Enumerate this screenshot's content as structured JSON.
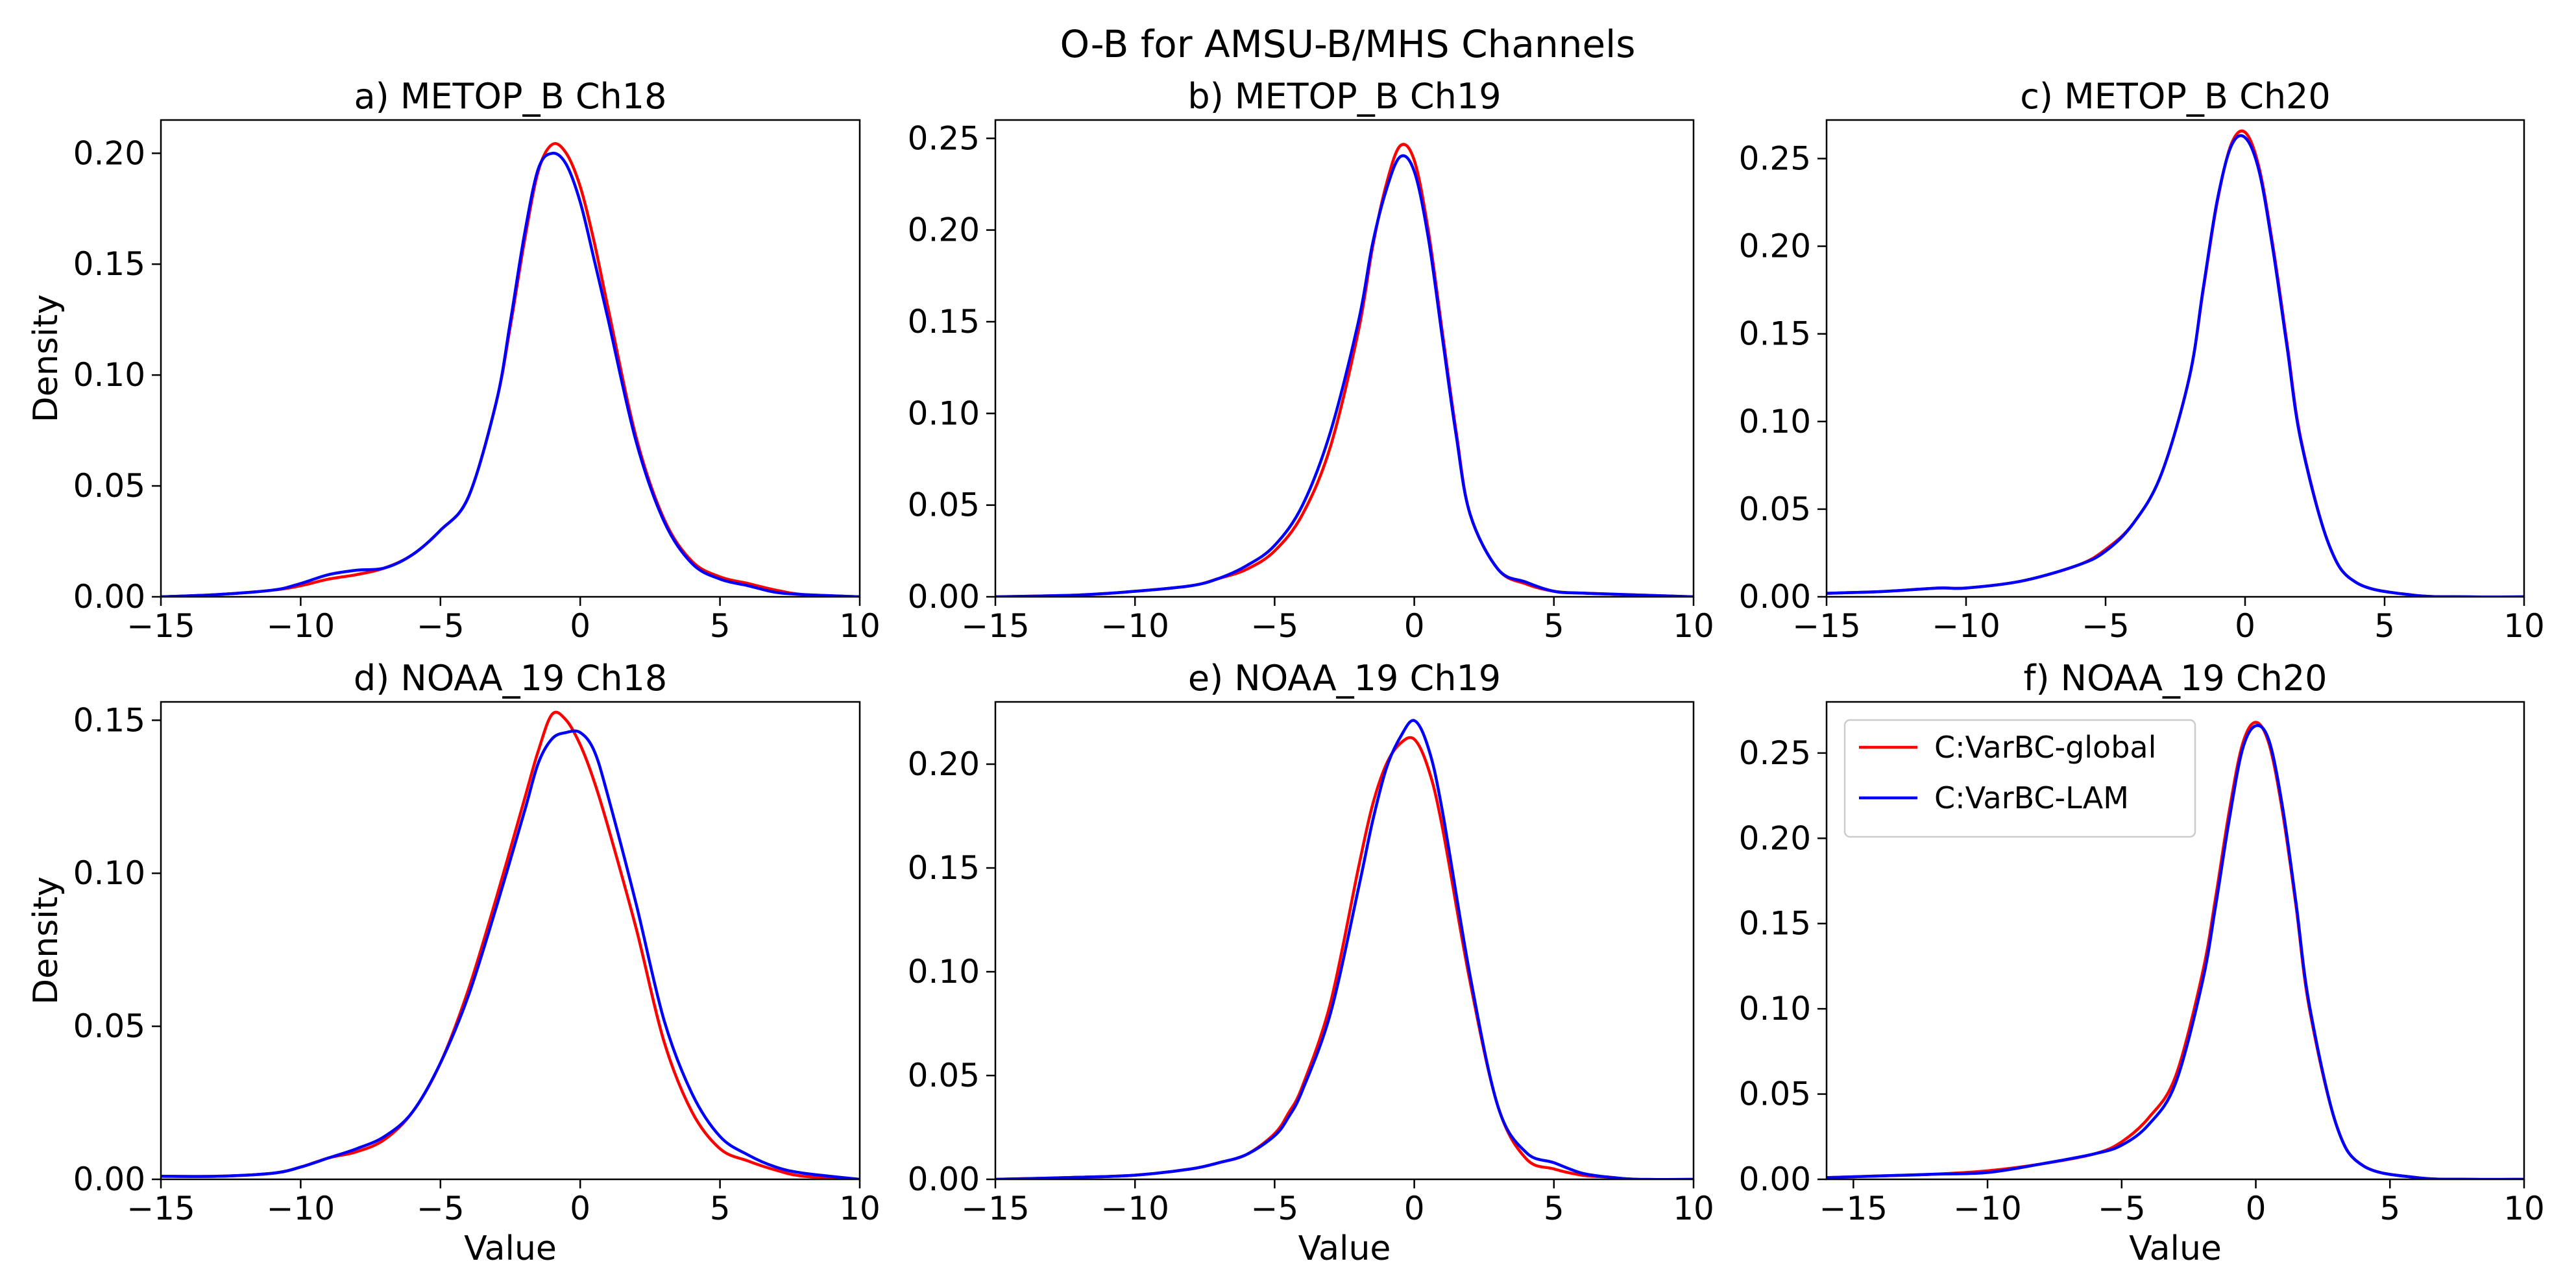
{
  "chart_data": {
    "title": "O-B for AMSU-B/MHS Channels",
    "type": "line",
    "series_names": [
      "C:VarBC-global",
      "C:VarBC-LAM"
    ],
    "colors": {
      "C:VarBC-global": "#ff0000",
      "C:VarBC-LAM": "#0000ff"
    },
    "legend": {
      "placement": "upper-left of panel f",
      "entries": [
        "C:VarBC-global",
        "C:VarBC-LAM"
      ]
    },
    "panels": [
      {
        "title": "a) METOP_B Ch18",
        "xlabel": "",
        "ylabel": "Density",
        "xlim": [
          -15,
          10
        ],
        "ylim": [
          0,
          0.215
        ],
        "xticks": [
          -15,
          -10,
          -5,
          0,
          5,
          10
        ],
        "xtick_labels": [
          "−15",
          "−10",
          "−5",
          "0",
          "5",
          "10"
        ],
        "yticks": [
          0,
          0.05,
          0.1,
          0.15,
          0.2
        ],
        "ytick_labels": [
          "0.00",
          "0.05",
          "0.10",
          "0.15",
          "0.20"
        ],
        "x": [
          -15,
          -13,
          -11,
          -10,
          -9,
          -8,
          -7,
          -6,
          -5,
          -4,
          -3,
          -2.5,
          -2,
          -1.5,
          -1,
          -0.5,
          0,
          0.5,
          1,
          2,
          3,
          4,
          5,
          6,
          7,
          8,
          10
        ],
        "series": [
          {
            "name": "C:VarBC-global",
            "values": [
              0,
              0.001,
              0.003,
              0.005,
              0.008,
              0.01,
              0.013,
              0.019,
              0.03,
              0.045,
              0.088,
              0.122,
              0.16,
              0.192,
              0.204,
              0.2,
              0.185,
              0.16,
              0.13,
              0.072,
              0.035,
              0.016,
              0.009,
              0.006,
              0.003,
              0.001,
              0
            ]
          },
          {
            "name": "C:VarBC-LAM",
            "values": [
              0,
              0.001,
              0.003,
              0.006,
              0.01,
              0.012,
              0.013,
              0.019,
              0.03,
              0.045,
              0.088,
              0.124,
              0.163,
              0.193,
              0.2,
              0.195,
              0.178,
              0.152,
              0.125,
              0.07,
              0.034,
              0.015,
              0.008,
              0.005,
              0.002,
              0.001,
              0
            ]
          }
        ]
      },
      {
        "title": "b) METOP_B Ch19",
        "xlabel": "",
        "ylabel": "",
        "xlim": [
          -15,
          10
        ],
        "ylim": [
          0,
          0.26
        ],
        "xticks": [
          -15,
          -10,
          -5,
          0,
          5,
          10
        ],
        "xtick_labels": [
          "−15",
          "−10",
          "−5",
          "0",
          "5",
          "10"
        ],
        "yticks": [
          0,
          0.05,
          0.1,
          0.15,
          0.2,
          0.25
        ],
        "ytick_labels": [
          "0.00",
          "0.05",
          "0.10",
          "0.15",
          "0.20",
          "0.25"
        ],
        "x": [
          -15,
          -12,
          -10,
          -8,
          -7,
          -6,
          -5,
          -4,
          -3,
          -2,
          -1.5,
          -1,
          -0.5,
          0,
          0.5,
          1,
          1.5,
          2,
          3,
          4,
          5,
          6,
          8,
          10
        ],
        "series": [
          {
            "name": "C:VarBC-global",
            "values": [
              0,
              0.001,
              0.003,
              0.006,
              0.01,
              0.015,
              0.025,
              0.045,
              0.082,
              0.145,
              0.19,
              0.225,
              0.246,
              0.238,
              0.2,
              0.145,
              0.09,
              0.045,
              0.015,
              0.007,
              0.003,
              0.002,
              0.001,
              0
            ]
          },
          {
            "name": "C:VarBC-LAM",
            "values": [
              0,
              0.001,
              0.003,
              0.006,
              0.01,
              0.017,
              0.028,
              0.05,
              0.09,
              0.15,
              0.192,
              0.222,
              0.24,
              0.232,
              0.196,
              0.142,
              0.088,
              0.045,
              0.015,
              0.008,
              0.003,
              0.002,
              0.001,
              0
            ]
          }
        ]
      },
      {
        "title": "c) METOP_B Ch20",
        "xlabel": "",
        "ylabel": "",
        "xlim": [
          -15,
          10
        ],
        "ylim": [
          0,
          0.272
        ],
        "xticks": [
          -15,
          -10,
          -5,
          0,
          5,
          10
        ],
        "xtick_labels": [
          "−15",
          "−10",
          "−5",
          "0",
          "5",
          "10"
        ],
        "yticks": [
          0,
          0.05,
          0.1,
          0.15,
          0.2,
          0.25
        ],
        "ytick_labels": [
          "0.00",
          "0.05",
          "0.10",
          "0.15",
          "0.20",
          "0.25"
        ],
        "x": [
          -15,
          -13,
          -11,
          -10,
          -8,
          -6,
          -5,
          -4,
          -3,
          -2,
          -1.5,
          -1,
          -0.5,
          0,
          0.5,
          1,
          1.5,
          2,
          3,
          4,
          6,
          8,
          10
        ],
        "series": [
          {
            "name": "C:VarBC-global",
            "values": [
              0.002,
              0.003,
              0.005,
              0.005,
              0.009,
              0.018,
              0.027,
              0.042,
              0.07,
              0.125,
              0.175,
              0.225,
              0.258,
              0.265,
              0.245,
              0.2,
              0.145,
              0.09,
              0.03,
              0.008,
              0.001,
              0,
              0
            ]
          },
          {
            "name": "C:VarBC-LAM",
            "values": [
              0.002,
              0.003,
              0.005,
              0.005,
              0.009,
              0.018,
              0.026,
              0.042,
              0.07,
              0.125,
              0.176,
              0.226,
              0.257,
              0.262,
              0.243,
              0.198,
              0.143,
              0.089,
              0.03,
              0.008,
              0.001,
              0,
              0
            ]
          }
        ]
      },
      {
        "title": "d) NOAA_19 Ch18",
        "xlabel": "Value",
        "ylabel": "Density",
        "xlim": [
          -15,
          10
        ],
        "ylim": [
          0,
          0.156
        ],
        "xticks": [
          -15,
          -10,
          -5,
          0,
          5,
          10
        ],
        "xtick_labels": [
          "−15",
          "−10",
          "−5",
          "0",
          "5",
          "10"
        ],
        "yticks": [
          0,
          0.05,
          0.1,
          0.15
        ],
        "ytick_labels": [
          "0.00",
          "0.05",
          "0.10",
          "0.15"
        ],
        "x": [
          -15,
          -13,
          -11,
          -10,
          -9,
          -8,
          -7,
          -6,
          -5,
          -4,
          -3,
          -2,
          -1.5,
          -1,
          -0.5,
          0,
          0.5,
          1,
          2,
          3,
          4,
          5,
          6,
          7,
          8,
          10
        ],
        "series": [
          {
            "name": "C:VarBC-global",
            "values": [
              0.001,
              0.001,
              0.002,
              0.004,
              0.007,
              0.009,
              0.013,
              0.022,
              0.038,
              0.062,
              0.092,
              0.124,
              0.14,
              0.152,
              0.15,
              0.142,
              0.13,
              0.115,
              0.082,
              0.045,
              0.022,
              0.01,
              0.006,
              0.003,
              0.001,
              0
            ]
          },
          {
            "name": "C:VarBC-LAM",
            "values": [
              0.001,
              0.001,
              0.002,
              0.004,
              0.007,
              0.01,
              0.014,
              0.022,
              0.038,
              0.06,
              0.089,
              0.12,
              0.136,
              0.144,
              0.146,
              0.146,
              0.14,
              0.125,
              0.09,
              0.052,
              0.028,
              0.014,
              0.008,
              0.004,
              0.002,
              0
            ]
          }
        ]
      },
      {
        "title": "e) NOAA_19 Ch19",
        "xlabel": "Value",
        "ylabel": "",
        "xlim": [
          -15,
          10
        ],
        "ylim": [
          0,
          0.23
        ],
        "xticks": [
          -15,
          -10,
          -5,
          0,
          5,
          10
        ],
        "xtick_labels": [
          "−15",
          "−10",
          "−5",
          "0",
          "5",
          "10"
        ],
        "yticks": [
          0,
          0.05,
          0.1,
          0.15,
          0.2
        ],
        "ytick_labels": [
          "0.00",
          "0.05",
          "0.10",
          "0.15",
          "0.20"
        ],
        "x": [
          -15,
          -12,
          -10,
          -8,
          -7,
          -6,
          -5,
          -4.5,
          -4,
          -3,
          -2,
          -1.5,
          -1,
          -0.5,
          0,
          0.5,
          1,
          2,
          3,
          4,
          5,
          6,
          7,
          8,
          10
        ],
        "series": [
          {
            "name": "C:VarBC-global",
            "values": [
              0,
              0.001,
              0.002,
              0.005,
              0.008,
              0.012,
              0.022,
              0.032,
              0.045,
              0.085,
              0.15,
              0.18,
              0.2,
              0.21,
              0.212,
              0.198,
              0.17,
              0.095,
              0.035,
              0.01,
              0.005,
              0.002,
              0.001,
              0,
              0
            ]
          },
          {
            "name": "C:VarBC-LAM",
            "values": [
              0,
              0.001,
              0.002,
              0.005,
              0.008,
              0.012,
              0.021,
              0.03,
              0.043,
              0.08,
              0.14,
              0.172,
              0.198,
              0.213,
              0.221,
              0.208,
              0.178,
              0.098,
              0.035,
              0.013,
              0.008,
              0.003,
              0.001,
              0,
              0
            ]
          }
        ]
      },
      {
        "title": "f) NOAA_19 Ch20",
        "xlabel": "Value",
        "ylabel": "",
        "xlim": [
          -16,
          10
        ],
        "ylim": [
          0,
          0.28
        ],
        "xticks": [
          -15,
          -10,
          -5,
          0,
          5,
          10
        ],
        "xtick_labels": [
          "−15",
          "−10",
          "−5",
          "0",
          "5",
          "10"
        ],
        "yticks": [
          0,
          0.05,
          0.1,
          0.15,
          0.2,
          0.25
        ],
        "ytick_labels": [
          "0.00",
          "0.05",
          "0.10",
          "0.15",
          "0.20",
          "0.25"
        ],
        "x": [
          -16,
          -14,
          -12,
          -10,
          -8,
          -6,
          -5,
          -4,
          -3,
          -2,
          -1.5,
          -1,
          -0.5,
          0,
          0.5,
          1,
          1.5,
          2,
          3,
          4,
          6,
          8,
          10
        ],
        "series": [
          {
            "name": "C:VarBC-global",
            "values": [
              0.001,
              0.002,
              0.003,
              0.005,
              0.009,
              0.015,
              0.022,
              0.036,
              0.06,
              0.12,
              0.165,
              0.215,
              0.255,
              0.268,
              0.255,
              0.215,
              0.16,
              0.1,
              0.032,
              0.008,
              0.001,
              0,
              0
            ]
          },
          {
            "name": "C:VarBC-LAM",
            "values": [
              0.001,
              0.002,
              0.003,
              0.004,
              0.009,
              0.015,
              0.02,
              0.032,
              0.056,
              0.115,
              0.16,
              0.21,
              0.252,
              0.266,
              0.257,
              0.218,
              0.162,
              0.102,
              0.032,
              0.008,
              0.001,
              0,
              0
            ]
          }
        ]
      }
    ]
  }
}
